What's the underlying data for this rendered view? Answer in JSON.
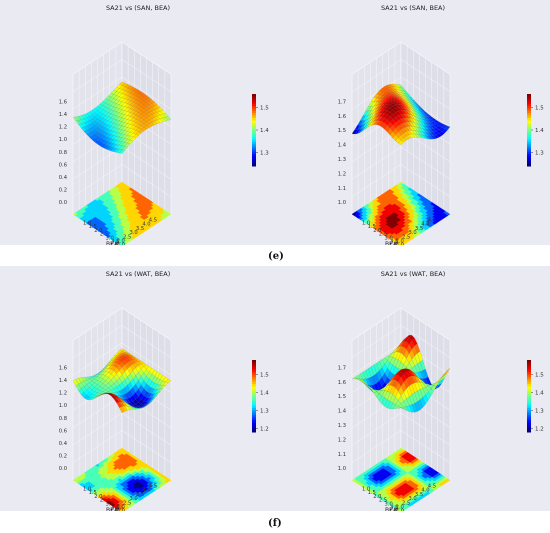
{
  "row_labels": [
    "(e)",
    "(f)"
  ],
  "chart_data": [
    {
      "type": "surface3d",
      "title": "SA21 vs (SAN, BEA)",
      "xlabel": "SAN",
      "ylabel": "BEA",
      "x_ticks": [
        "1.0",
        "1.5",
        "2.0",
        "2.5",
        "3.0",
        "3.5",
        "4.0",
        "4.5",
        "5.0"
      ],
      "y_ticks": [
        "1.0",
        "1.5",
        "2.0",
        "2.5",
        "3.0",
        "3.5",
        "4.0",
        "4.5"
      ],
      "z_ticks": [
        "0.0",
        "0.2",
        "0.4",
        "0.6",
        "0.8",
        "1.0",
        "1.2",
        "1.4",
        "1.6"
      ],
      "zlim": [
        0.0,
        1.6
      ],
      "colorbar_ticks": [
        "1.5",
        "1.4",
        "1.3"
      ],
      "colorbar_range": [
        1.24,
        1.56
      ],
      "colormap": "jet",
      "surface_range": [
        1.2,
        1.5
      ]
    },
    {
      "type": "surface3d",
      "title": "SA21 vs (SAN, BEA)",
      "xlabel": "SAN",
      "ylabel": "BEA",
      "x_ticks": [
        "1.0",
        "1.5",
        "2.0",
        "2.5",
        "3.0",
        "3.5",
        "4.0",
        "4.5",
        "5.0"
      ],
      "y_ticks": [
        "1.0",
        "1.5",
        "2.0",
        "2.5",
        "3.0",
        "3.5",
        "4.0",
        "4.5"
      ],
      "z_ticks": [
        "1.0",
        "1.1",
        "1.2",
        "1.3",
        "1.4",
        "1.5",
        "1.6",
        "1.7"
      ],
      "zlim": [
        1.0,
        1.7
      ],
      "colorbar_ticks": [
        "1.5",
        "1.4",
        "1.3"
      ],
      "colorbar_range": [
        1.24,
        1.56
      ],
      "colormap": "jet",
      "surface_range": [
        1.3,
        1.55
      ]
    },
    {
      "type": "surface3d",
      "title": "SA21 vs (WAT, BEA)",
      "xlabel": "WAT",
      "ylabel": "BEA",
      "x_ticks": [
        "1.0",
        "1.5",
        "2.0",
        "2.5",
        "3.0",
        "3.5",
        "4.0",
        "4.5",
        "5.0"
      ],
      "y_ticks": [
        "1.0",
        "1.5",
        "2.0",
        "2.5",
        "3.0",
        "3.5",
        "4.0",
        "4.5"
      ],
      "z_ticks": [
        "0.0",
        "0.2",
        "0.4",
        "0.6",
        "0.8",
        "1.0",
        "1.2",
        "1.4",
        "1.6"
      ],
      "zlim": [
        0.0,
        1.6
      ],
      "colorbar_ticks": [
        "1.5",
        "1.4",
        "1.3",
        "1.2"
      ],
      "colorbar_range": [
        1.18,
        1.58
      ],
      "colormap": "jet",
      "surface_range": [
        1.2,
        1.55
      ]
    },
    {
      "type": "surface3d",
      "title": "SA21 vs (WAT, BEA)",
      "xlabel": "WAT",
      "ylabel": "BEA",
      "x_ticks": [
        "1.0",
        "1.5",
        "2.0",
        "2.5",
        "3.0",
        "3.5",
        "4.0",
        "4.5",
        "5.0"
      ],
      "y_ticks": [
        "1.0",
        "1.5",
        "2.0",
        "2.5",
        "3.0",
        "3.5",
        "4.0",
        "4.5"
      ],
      "z_ticks": [
        "1.0",
        "1.1",
        "1.2",
        "1.3",
        "1.4",
        "1.5",
        "1.6",
        "1.7"
      ],
      "zlim": [
        1.0,
        1.7
      ],
      "colorbar_ticks": [
        "1.5",
        "1.4",
        "1.3",
        "1.2"
      ],
      "colorbar_range": [
        1.18,
        1.58
      ],
      "colormap": "jet",
      "surface_range": [
        1.2,
        1.6
      ]
    }
  ]
}
